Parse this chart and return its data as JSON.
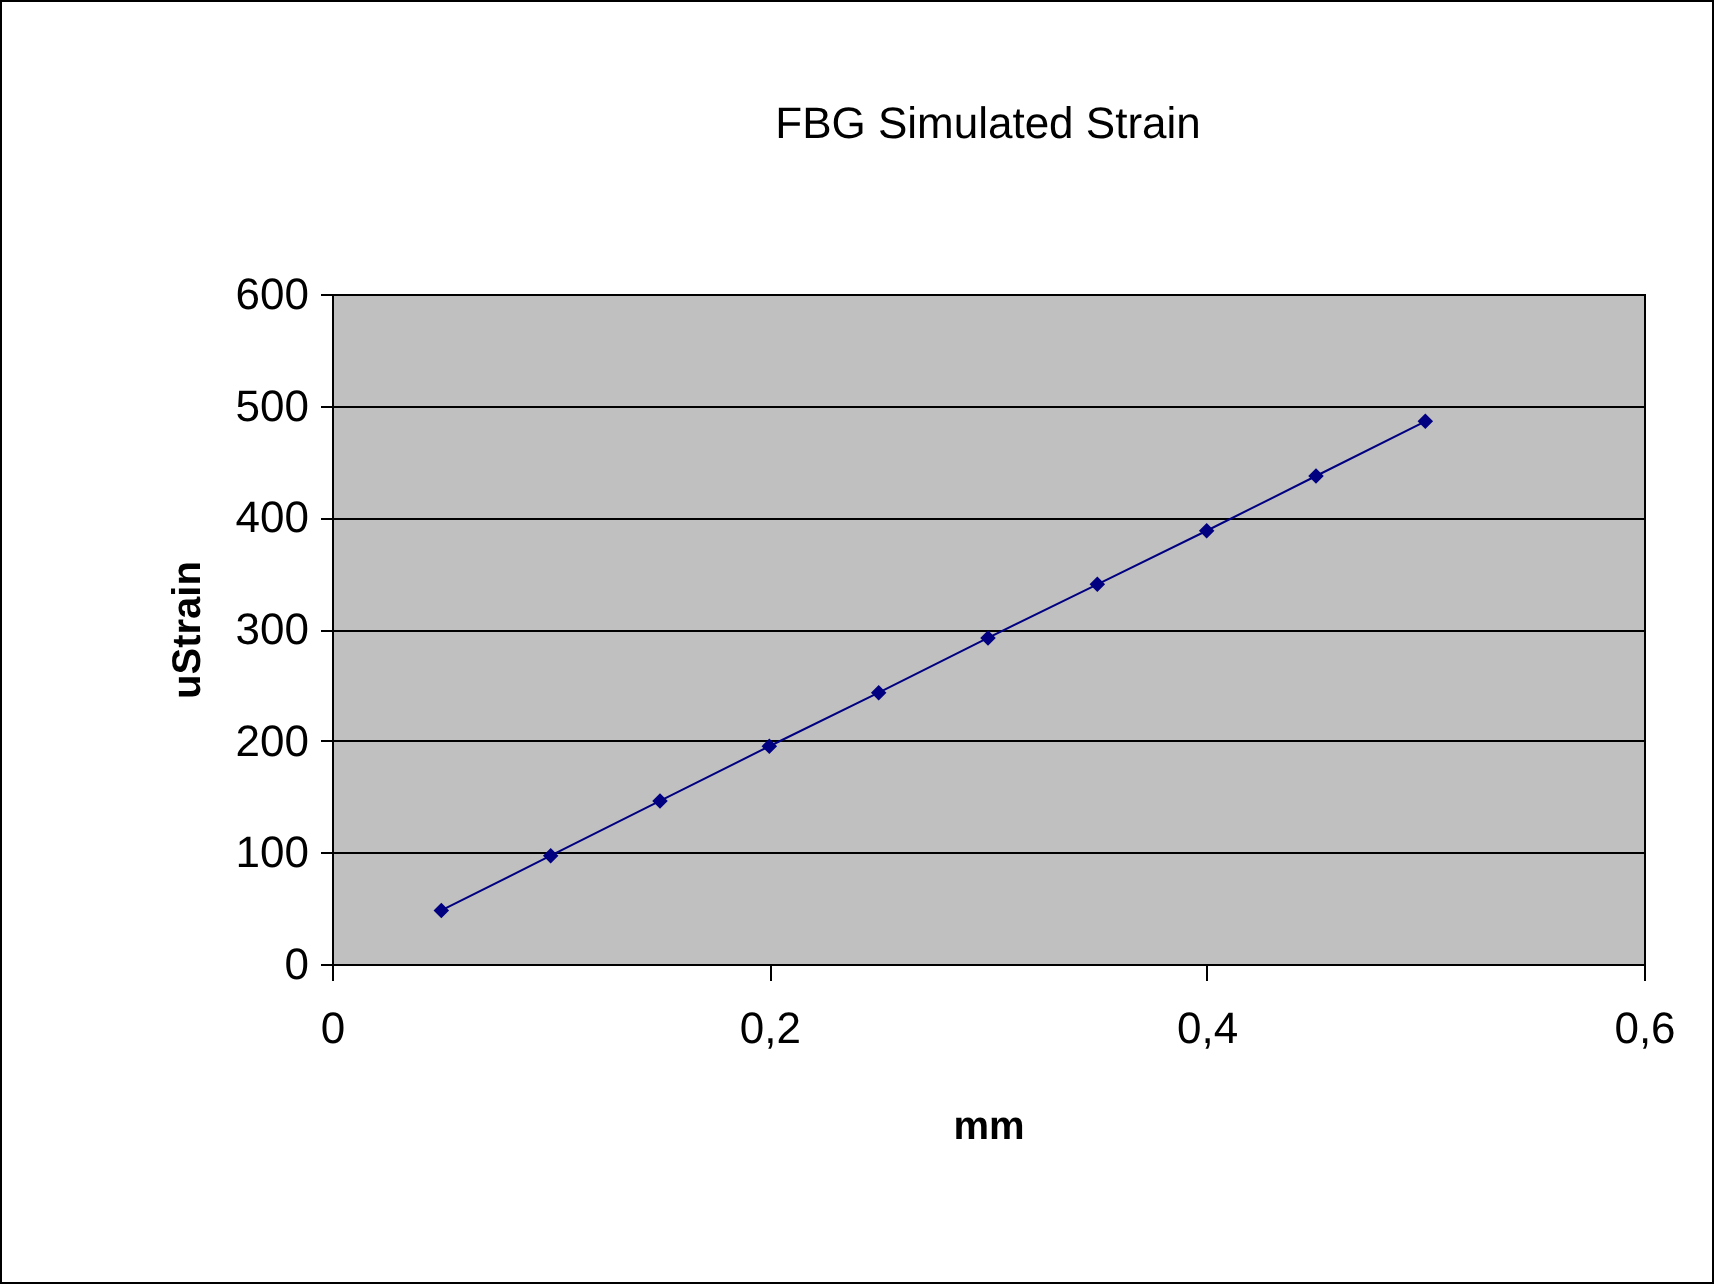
{
  "chart_data": {
    "type": "line",
    "title": "FBG Simulated Strain",
    "xlabel": "mm",
    "ylabel": "uStrain",
    "x": [
      0.05,
      0.1,
      0.15,
      0.2,
      0.25,
      0.3,
      0.35,
      0.4,
      0.45,
      0.5
    ],
    "series": [
      {
        "color": "#000080",
        "values": [
          48,
          97,
          146,
          195,
          243,
          292,
          340,
          388,
          437,
          486
        ]
      }
    ],
    "xlim": [
      0,
      0.6
    ],
    "xticks": [
      0,
      {
        "value": 0.2,
        "label": "0,2"
      },
      {
        "value": 0.4,
        "label": "0,4"
      },
      {
        "value": 0.6,
        "label": "0,6"
      }
    ],
    "ylim": [
      0,
      600
    ],
    "yticks": [
      0,
      100,
      200,
      300,
      400,
      500,
      600
    ],
    "grid": "y",
    "marker": "diamond",
    "line_style": "solid"
  }
}
